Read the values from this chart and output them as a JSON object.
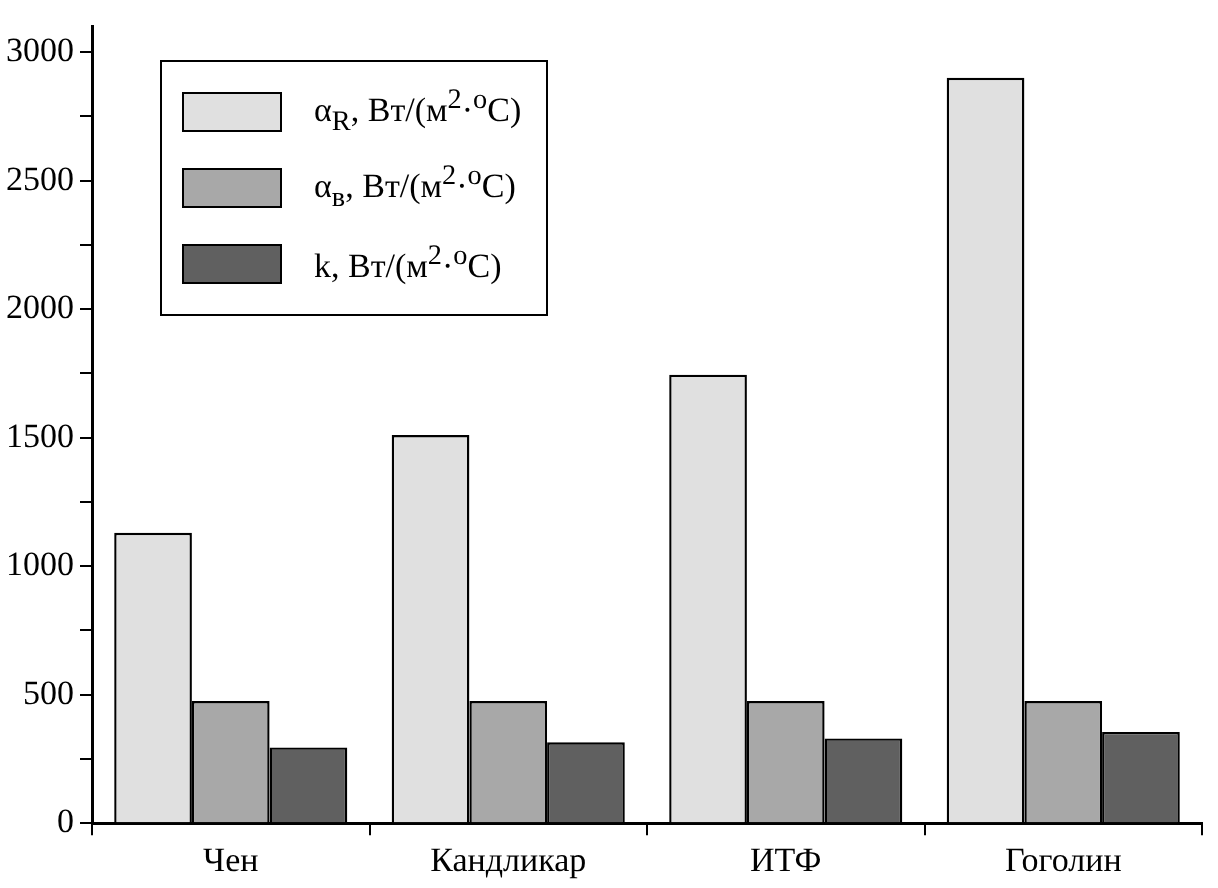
{
  "chart_data": {
    "type": "bar",
    "categories": [
      "Чен",
      "Кандликар",
      "ИТФ",
      "Гоголин"
    ],
    "series": [
      {
        "name": "α$_{R}$, Вт/(м$^{2}$·$^{o}$C)",
        "color": "#e0e0e0",
        "values": [
          1130,
          1510,
          1745,
          2900
        ]
      },
      {
        "name": "α$_{в}$, Вт/(м$^{2}$·$^{o}$C)",
        "color": "#a8a8a8",
        "values": [
          475,
          475,
          475,
          475
        ]
      },
      {
        "name": "k, Вт/(м$^{2}$·$^{o}$C)",
        "color": "#606060",
        "values": [
          295,
          315,
          330,
          355
        ]
      }
    ],
    "ylim": [
      0,
      3100
    ],
    "yticks": [
      0,
      {
        "value": 250,
        "label": null
      },
      500,
      {
        "value": 750,
        "label": null
      },
      1000,
      {
        "value": 1250,
        "label": null
      },
      1500,
      {
        "value": 1750,
        "label": null
      },
      2000,
      {
        "value": 2250,
        "label": null
      },
      2500,
      {
        "value": 2750,
        "label": null
      },
      3000
    ],
    "grid": false,
    "legend": "top left"
  }
}
